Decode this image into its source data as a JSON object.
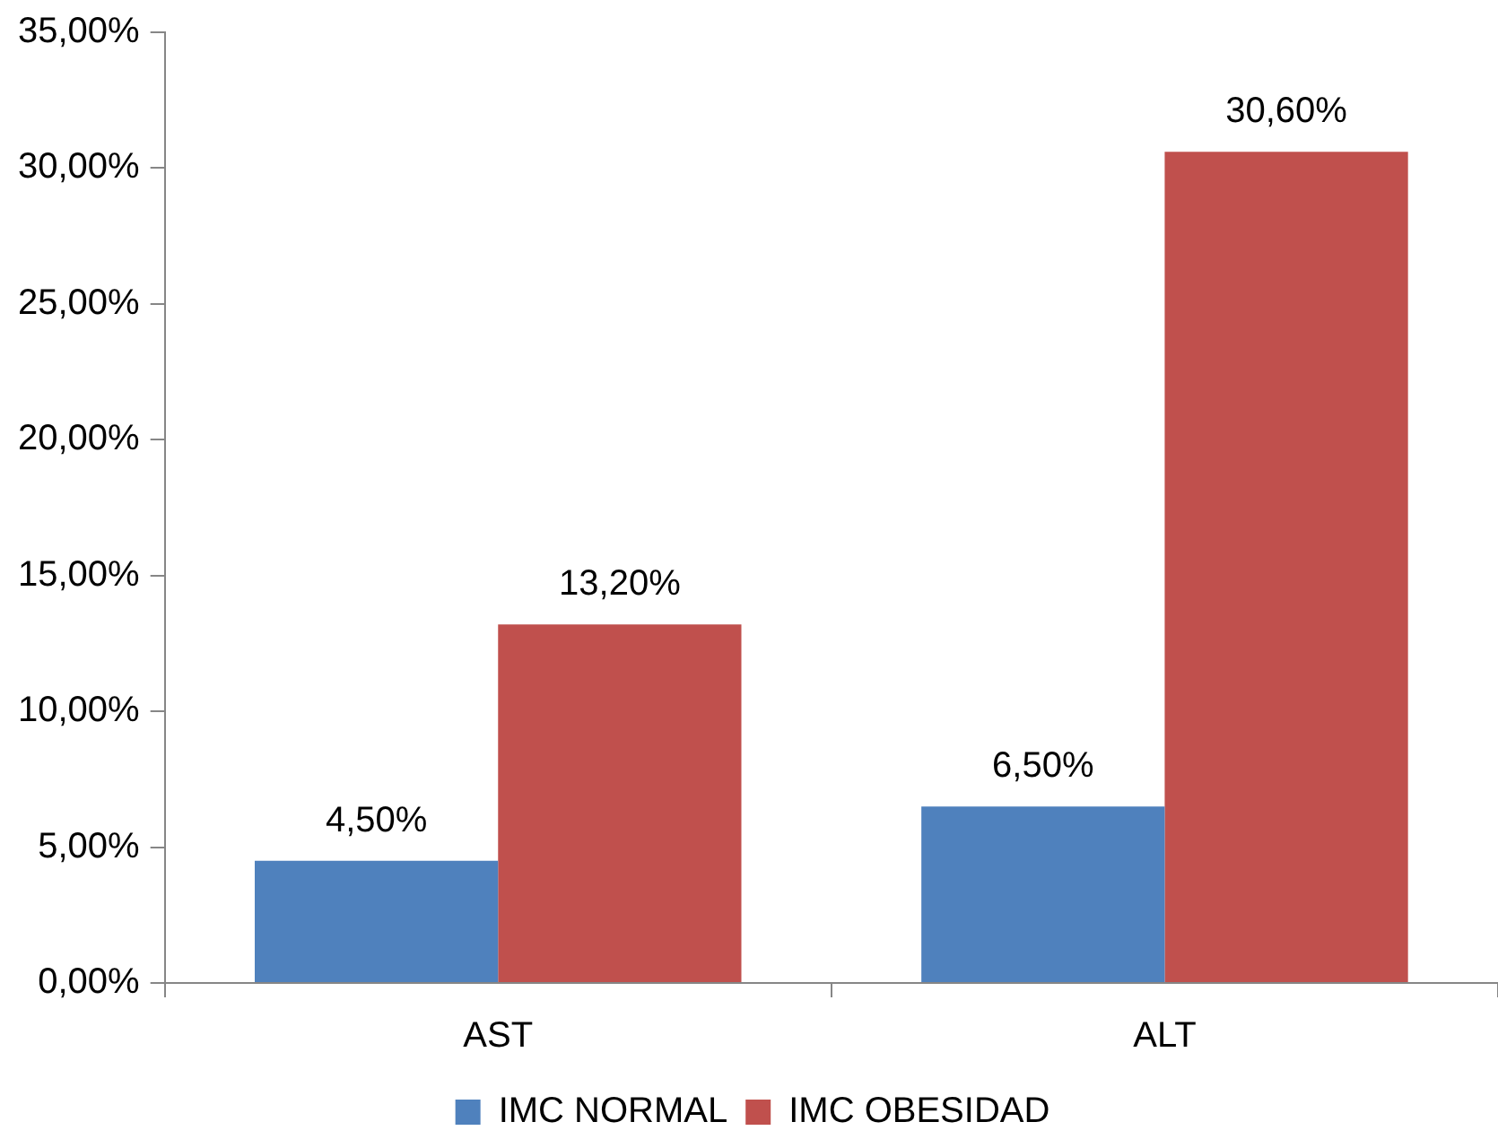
{
  "chart_data": {
    "type": "bar",
    "categories": [
      "AST",
      "ALT"
    ],
    "series": [
      {
        "name": "IMC NORMAL",
        "color": "#4f81bd",
        "values": [
          4.5,
          6.5
        ],
        "value_labels": [
          "4,50%",
          "6,50%"
        ]
      },
      {
        "name": "IMC OBESIDAD",
        "color": "#c0504d",
        "values": [
          13.2,
          30.6
        ],
        "value_labels": [
          "13,20%",
          "30,60%"
        ]
      }
    ],
    "ylim": [
      0,
      35
    ],
    "yticks": [
      {
        "value": 0,
        "label": "0,00%"
      },
      {
        "value": 5,
        "label": "5,00%"
      },
      {
        "value": 10,
        "label": "10,00%"
      },
      {
        "value": 15,
        "label": "15,00%"
      },
      {
        "value": 20,
        "label": "20,00%"
      },
      {
        "value": 25,
        "label": "25,00%"
      },
      {
        "value": 30,
        "label": "30,00%"
      },
      {
        "value": 35,
        "label": "35,00%"
      }
    ],
    "legend": "bottom"
  }
}
